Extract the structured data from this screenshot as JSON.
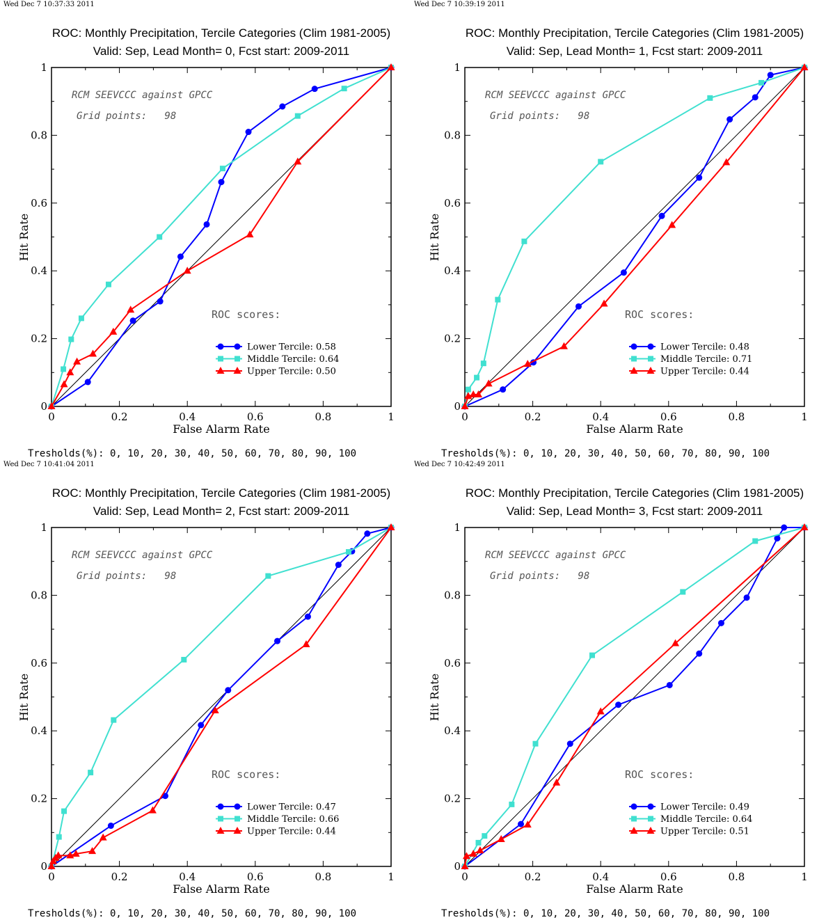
{
  "colors": {
    "lower": "#0000ff",
    "middle": "#40e0d0",
    "upper": "#ff0000",
    "diagonal": "#000000"
  },
  "chart_data": [
    {
      "type": "line",
      "timestamp": "Wed Dec  7 10:37:33 2011",
      "title": "ROC: Monthly Precipitation, Tercile Categories (Clim 1981-2005)",
      "subtitle": "Valid: Sep, Lead Month= 0, Fcst start: 2009-2011",
      "xlabel": "False Alarm Rate",
      "ylabel": "Hit Rate",
      "xlim": [
        0,
        1
      ],
      "ylim": [
        0,
        1
      ],
      "xticks": [
        "0",
        "0.2",
        "0.4",
        "0.6",
        "0.8",
        "1"
      ],
      "yticks": [
        "0",
        "0.2",
        "0.4",
        "0.6",
        "0.8",
        "1"
      ],
      "annotation_model": "RCM SEEVCCC against GPCC",
      "annotation_grid": "Grid points:   98",
      "scores_heading": "ROC scores:",
      "thresholds": "Tresholds(%): 0, 10, 20, 30, 40, 50, 60, 70, 80, 90, 100",
      "series": [
        {
          "name": "Lower Tercile: 0.58",
          "key": "lower",
          "marker": "circle",
          "x": [
            0,
            0.107,
            0.24,
            0.32,
            0.38,
            0.457,
            0.5,
            0.58,
            0.68,
            0.775,
            1
          ],
          "y": [
            0,
            0.072,
            0.253,
            0.31,
            0.442,
            0.537,
            0.662,
            0.81,
            0.885,
            0.937,
            1
          ]
        },
        {
          "name": "Middle Tercile: 0.64",
          "key": "middle",
          "marker": "square",
          "x": [
            0,
            0.035,
            0.058,
            0.088,
            0.168,
            0.318,
            0.504,
            0.725,
            0.862,
            1
          ],
          "y": [
            0,
            0.11,
            0.198,
            0.26,
            0.36,
            0.5,
            0.702,
            0.857,
            0.938,
            1
          ],
          "legend_only": false
        },
        {
          "name": "Upper Tercile: 0.50",
          "key": "upper",
          "marker": "triangle",
          "x": [
            0,
            0.037,
            0.055,
            0.075,
            0.122,
            0.182,
            0.233,
            0.4,
            0.584,
            0.725,
            1
          ],
          "y": [
            0,
            0.065,
            0.1,
            0.132,
            0.155,
            0.22,
            0.285,
            0.4,
            0.507,
            0.722,
            1
          ]
        }
      ]
    },
    {
      "type": "line",
      "timestamp": "Wed Dec  7 10:39:19 2011",
      "title": "ROC: Monthly Precipitation, Tercile Categories (Clim 1981-2005)",
      "subtitle": "Valid: Sep, Lead Month= 1, Fcst start: 2009-2011",
      "xlabel": "False Alarm Rate",
      "ylabel": "Hit Rate",
      "xlim": [
        0,
        1
      ],
      "ylim": [
        0,
        1
      ],
      "xticks": [
        "0",
        "0.2",
        "0.4",
        "0.6",
        "0.8",
        "1"
      ],
      "yticks": [
        "0",
        "0.2",
        "0.4",
        "0.6",
        "0.8",
        "1"
      ],
      "annotation_model": "RCM SEEVCCC against GPCC",
      "annotation_grid": "Grid points:   98",
      "scores_heading": "ROC scores:",
      "thresholds": "Tresholds(%): 0, 10, 20, 30, 40, 50, 60, 70, 80, 90, 100",
      "series": [
        {
          "name": "Lower Tercile: 0.48",
          "key": "lower",
          "marker": "circle",
          "x": [
            0,
            0.112,
            0.202,
            0.335,
            0.468,
            0.58,
            0.69,
            0.78,
            0.855,
            0.9,
            1
          ],
          "y": [
            0,
            0.05,
            0.13,
            0.295,
            0.395,
            0.562,
            0.675,
            0.847,
            0.912,
            0.978,
            1
          ]
        },
        {
          "name": "Middle Tercile: 0.71",
          "key": "middle",
          "marker": "square",
          "x": [
            0,
            0.01,
            0.035,
            0.055,
            0.097,
            0.175,
            0.4,
            0.722,
            0.873,
            1
          ],
          "y": [
            0,
            0.05,
            0.085,
            0.127,
            0.315,
            0.487,
            0.722,
            0.91,
            0.955,
            1
          ]
        },
        {
          "name": "Upper Tercile: 0.44",
          "key": "upper",
          "marker": "triangle",
          "x": [
            0,
            0.01,
            0.025,
            0.04,
            0.07,
            0.185,
            0.292,
            0.41,
            0.61,
            0.77,
            1
          ],
          "y": [
            0,
            0.03,
            0.035,
            0.035,
            0.067,
            0.125,
            0.177,
            0.303,
            0.535,
            0.72,
            1
          ]
        }
      ]
    },
    {
      "type": "line",
      "timestamp": "Wed Dec  7 10:41:04 2011",
      "title": "ROC: Monthly Precipitation, Tercile Categories (Clim 1981-2005)",
      "subtitle": "Valid: Sep, Lead Month= 2, Fcst start: 2009-2011",
      "xlabel": "False Alarm Rate",
      "ylabel": "Hit Rate",
      "xlim": [
        0,
        1
      ],
      "ylim": [
        0,
        1
      ],
      "xticks": [
        "0",
        "0.2",
        "0.4",
        "0.6",
        "0.8",
        "1"
      ],
      "yticks": [
        "0",
        "0.2",
        "0.4",
        "0.6",
        "0.8",
        "1"
      ],
      "annotation_model": "RCM SEEVCCC against GPCC",
      "annotation_grid": "Grid points:   98",
      "scores_heading": "ROC scores:",
      "thresholds": "Tresholds(%): 0, 10, 20, 30, 40, 50, 60, 70, 80, 90, 100",
      "series": [
        {
          "name": "Lower Tercile: 0.47",
          "key": "lower",
          "marker": "circle",
          "x": [
            0,
            0.175,
            0.335,
            0.44,
            0.52,
            0.665,
            0.755,
            0.845,
            0.885,
            0.93,
            1
          ],
          "y": [
            0,
            0.12,
            0.208,
            0.417,
            0.52,
            0.665,
            0.737,
            0.89,
            0.93,
            0.982,
            1
          ]
        },
        {
          "name": "Middle Tercile: 0.66",
          "key": "middle",
          "marker": "square",
          "x": [
            0,
            0.022,
            0.037,
            0.115,
            0.183,
            0.39,
            0.638,
            0.875,
            1
          ],
          "y": [
            0,
            0.087,
            0.163,
            0.277,
            0.432,
            0.61,
            0.857,
            0.928,
            1
          ]
        },
        {
          "name": "Upper Tercile: 0.44",
          "key": "upper",
          "marker": "triangle",
          "x": [
            0,
            0.005,
            0.012,
            0.02,
            0.055,
            0.072,
            0.12,
            0.152,
            0.298,
            0.482,
            0.75,
            1
          ],
          "y": [
            0,
            0.015,
            0.025,
            0.032,
            0.032,
            0.037,
            0.045,
            0.085,
            0.165,
            0.46,
            0.655,
            1
          ]
        }
      ]
    },
    {
      "type": "line",
      "timestamp": "Wed Dec  7 10:42:49 2011",
      "title": "ROC: Monthly Precipitation, Tercile Categories (Clim 1981-2005)",
      "subtitle": "Valid: Sep, Lead Month= 3, Fcst start: 2009-2011",
      "xlabel": "False Alarm Rate",
      "ylabel": "Hit Rate",
      "xlim": [
        0,
        1
      ],
      "ylim": [
        0,
        1
      ],
      "xticks": [
        "0",
        "0.2",
        "0.4",
        "0.6",
        "0.8",
        "1"
      ],
      "yticks": [
        "0",
        "0.2",
        "0.4",
        "0.6",
        "0.8",
        "1"
      ],
      "annotation_model": "RCM SEEVCCC against GPCC",
      "annotation_grid": "Grid points:   98",
      "scores_heading": "ROC scores:",
      "thresholds": "Tresholds(%): 0, 10, 20, 30, 40, 50, 60, 70, 80, 90, 100",
      "series": [
        {
          "name": "Lower Tercile: 0.49",
          "key": "lower",
          "marker": "circle",
          "x": [
            0,
            0.165,
            0.31,
            0.452,
            0.603,
            0.69,
            0.755,
            0.83,
            0.92,
            0.94,
            1
          ],
          "y": [
            0,
            0.125,
            0.362,
            0.477,
            0.535,
            0.628,
            0.718,
            0.793,
            0.968,
            1.0,
            1
          ]
        },
        {
          "name": "Middle Tercile: 0.64",
          "key": "middle",
          "marker": "square",
          "x": [
            0,
            0.04,
            0.058,
            0.138,
            0.208,
            0.375,
            0.642,
            0.855,
            1
          ],
          "y": [
            0,
            0.07,
            0.09,
            0.183,
            0.362,
            0.623,
            0.81,
            0.96,
            1
          ]
        },
        {
          "name": "Upper Tercile: 0.51",
          "key": "upper",
          "marker": "triangle",
          "x": [
            0,
            0.005,
            0.025,
            0.045,
            0.107,
            0.185,
            0.27,
            0.4,
            0.62,
            1
          ],
          "y": [
            0,
            0.03,
            0.037,
            0.047,
            0.08,
            0.123,
            0.247,
            0.457,
            0.658,
            1
          ]
        }
      ]
    }
  ]
}
